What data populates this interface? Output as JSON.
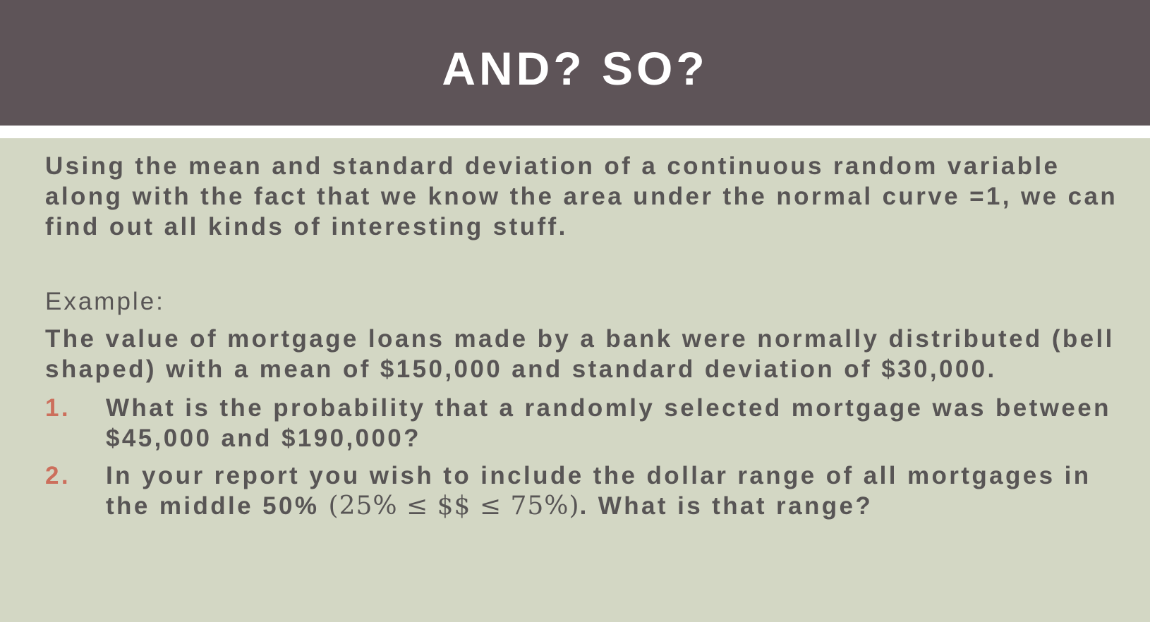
{
  "slide": {
    "title": "AND? SO?",
    "intro": "Using the mean and standard deviation of a continuous random variable along with the fact that we know the area under the normal curve =1, we can find out all kinds of interesting stuff.",
    "example_label": "Example:",
    "example_text": "The value of mortgage loans made by a bank were normally distributed (bell shaped) with a mean of $150,000 and standard deviation of $30,000.",
    "questions": [
      {
        "number": "1.",
        "text": "What is the probability that a randomly selected mortgage was between $45,000 and $190,000?"
      },
      {
        "number": "2.",
        "text_before": "In your report you wish to include the dollar range of all mortgages in the middle 50%",
        "math": "(25% ≤ $$ ≤ 75%)",
        "text_after": ". What is that range?"
      }
    ]
  },
  "colors": {
    "title_bar": "#5e5458",
    "background": "#d3d7c4",
    "body_text": "#585555",
    "list_number": "#cc6f5c"
  }
}
